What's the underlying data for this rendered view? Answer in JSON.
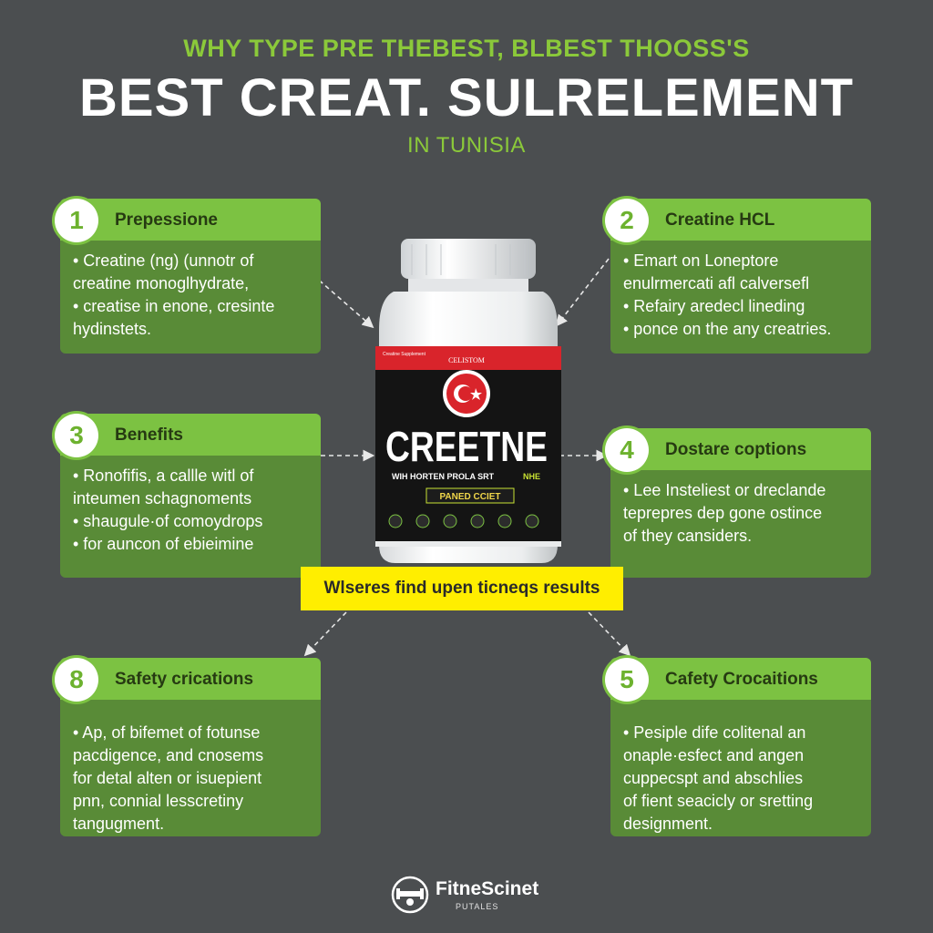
{
  "header": {
    "line1": "WHY TYPE PRE THEBEST, BLBEST THOOSS'S",
    "line2": "BEST CREAT. SULRELEMENT",
    "line3": "IN TUNISIA"
  },
  "cards": {
    "c1": {
      "num": "1",
      "title": "Prepessione",
      "lines": [
        "• Creatine (ng) (unnotr of",
        "  creatine monoglhydrate,",
        "• creatise in enone, cresinte",
        "  hydinstets."
      ]
    },
    "c2": {
      "num": "2",
      "title": "Creatine HCL",
      "lines": [
        "• Emart on Loneptore",
        "  enulrmercati afl calversefl",
        "• Refairy aredecl lineding",
        "• ponce on the any creatries."
      ]
    },
    "c3": {
      "num": "3",
      "title": "Benefits",
      "lines": [
        "• Ronofifis, a callle witl of",
        "  inteumen schagnoments",
        "• shaugule·of comoydrops",
        "• for auncon of ebieimine"
      ]
    },
    "c4": {
      "num": "4",
      "title": "Dostare coptions",
      "lines": [
        "• Lee Insteliest or dreclande",
        "  teprepres dep gone ostince",
        "  of they cansiders."
      ]
    },
    "c8": {
      "num": "8",
      "title": "Safety crications",
      "lines": [
        "• Ap, of bifemet of fotunse",
        "  pacdigence, and cnosems",
        "  for detal alten or isuepient",
        "  pnn, connial lesscretiny",
        "  tangugment."
      ]
    },
    "c5": {
      "num": "5",
      "title": "Cafety Crocaitions",
      "lines": [
        "• Pesiple dife colitenal an",
        "  onaple·esfect and angen",
        "  cuppecspt and abschlies",
        "  of fient seacicly or sretting",
        "  designment."
      ]
    }
  },
  "bottle": {
    "brand_small": "CELISTOM",
    "label_left": "Creatine Supplement",
    "name": "CREETNE",
    "tagline": "WIH HORTEN PROLA SRT",
    "tagline_accent": "NHE",
    "badge": "PANED CCIET"
  },
  "banner": {
    "text": "Wlseres find upen ticneqs results"
  },
  "footer": {
    "brand": "FitneScinet",
    "sub": "PUTALES"
  },
  "colors": {
    "background": "#4b4e50",
    "card_body": "#598b37",
    "card_header": "#7cc242",
    "accent_green": "#8bc93a",
    "banner_yellow": "#ffee00",
    "bottle_red": "#d9242b"
  }
}
